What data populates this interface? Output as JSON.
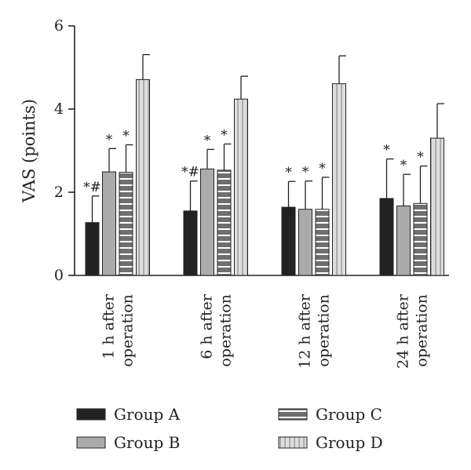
{
  "chart_data": {
    "type": "bar",
    "ylabel": "VAS (points)",
    "ylim": [
      0,
      6
    ],
    "yticks": [
      0,
      2,
      4,
      6
    ],
    "categories": [
      [
        "1 h after",
        "operation"
      ],
      [
        "6 h after",
        "operation"
      ],
      [
        "12 h after",
        "operation"
      ],
      [
        "24 h after",
        "operation"
      ]
    ],
    "series": [
      {
        "name": "Group A",
        "color": "#222222",
        "pattern": "solid",
        "values": [
          1.27,
          1.55,
          1.64,
          1.85
        ],
        "errors": [
          0.64,
          0.72,
          0.62,
          0.95
        ]
      },
      {
        "name": "Group B",
        "color": "#ababab",
        "pattern": "solid",
        "values": [
          2.49,
          2.56,
          1.59,
          1.67
        ],
        "errors": [
          0.56,
          0.47,
          0.68,
          0.76
        ]
      },
      {
        "name": "Group C",
        "color": "#6f6f6f",
        "pattern": "horizontal-stripes",
        "values": [
          2.48,
          2.53,
          1.59,
          1.73
        ],
        "errors": [
          0.66,
          0.63,
          0.77,
          0.9
        ]
      },
      {
        "name": "Group D",
        "color": "#dedede",
        "pattern": "vertical-stripes",
        "values": [
          4.71,
          4.24,
          4.61,
          3.3
        ],
        "errors": [
          0.6,
          0.55,
          0.67,
          0.83
        ]
      }
    ],
    "annotations": [
      [
        "*#",
        "*",
        "*",
        ""
      ],
      [
        "*#",
        "*",
        "*",
        ""
      ],
      [
        "*",
        "*",
        "*",
        ""
      ],
      [
        "*",
        "*",
        "*",
        ""
      ]
    ],
    "legend": {
      "position": "bottom",
      "columns": 2
    },
    "grid": false
  }
}
